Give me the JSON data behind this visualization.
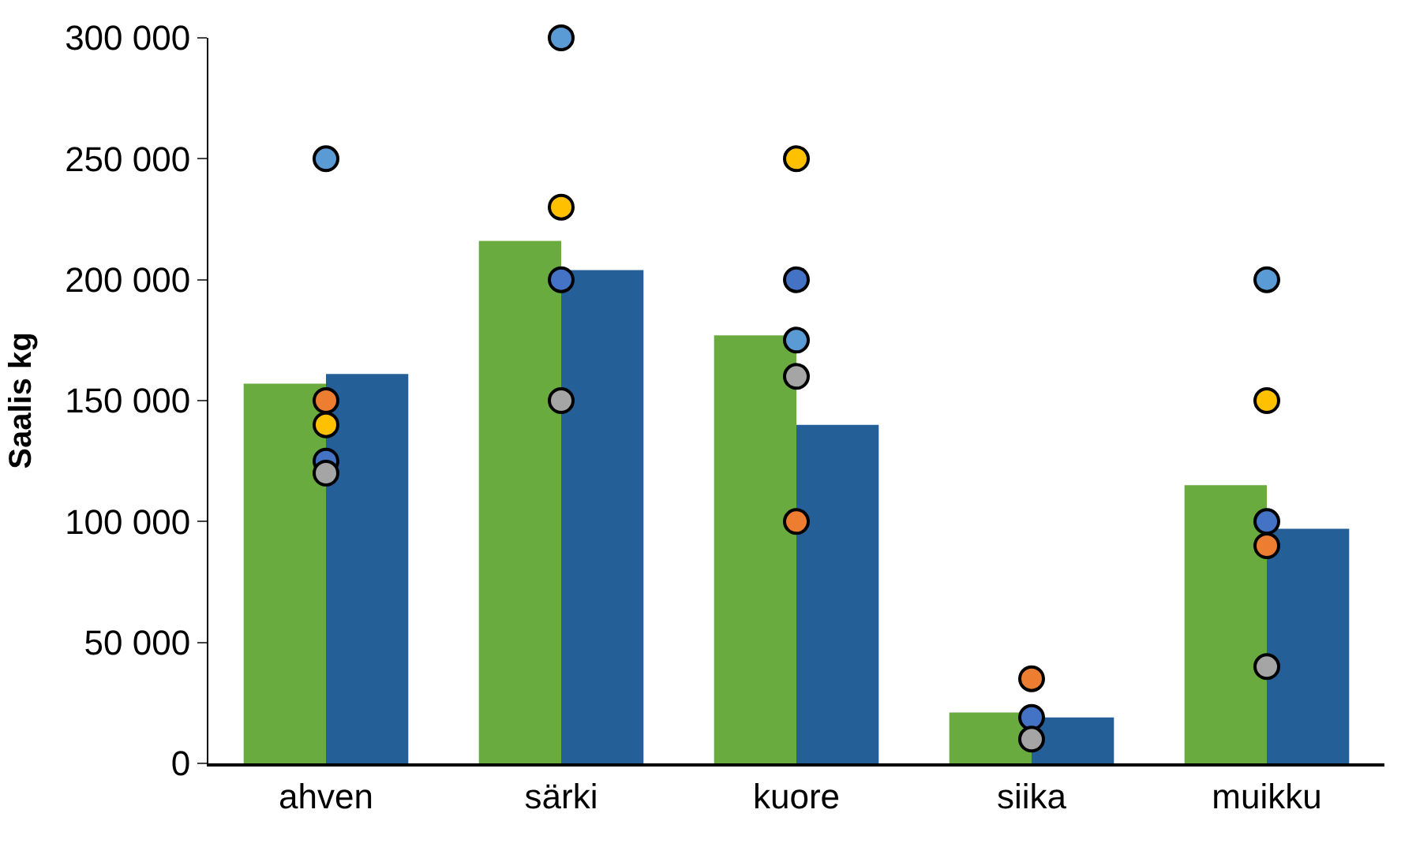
{
  "chart_data": {
    "type": "bar",
    "ylabel": "Saalis kg",
    "categories": [
      "ahven",
      "särki",
      "kuore",
      "siika",
      "muikku"
    ],
    "ylim": [
      0,
      300000
    ],
    "yticks": [
      {
        "value": 0,
        "label": "0"
      },
      {
        "value": 50000,
        "label": "50 000"
      },
      {
        "value": 100000,
        "label": "100 000"
      },
      {
        "value": 150000,
        "label": "150 000"
      },
      {
        "value": 200000,
        "label": "200 000"
      },
      {
        "value": 250000,
        "label": "250 000"
      },
      {
        "value": 300000,
        "label": "300 000"
      }
    ],
    "marker": "circle",
    "series": [
      {
        "color": "#6aab40",
        "values": [
          157000,
          216000,
          177000,
          21000,
          115000
        ]
      },
      {
        "color": "#255f97",
        "values": [
          161000,
          204000,
          140000,
          19000,
          97000
        ]
      },
      {
        "type": "scatter",
        "color": "#5b9bd5",
        "x": [
          "ahven",
          "särki",
          "kuore",
          "siika",
          "muikku"
        ],
        "values": [
          250000,
          300000,
          175000,
          null,
          200000
        ]
      },
      {
        "type": "scatter",
        "color": "#ffc000",
        "x": [
          "ahven",
          "särki",
          "kuore",
          "siika",
          "muikku"
        ],
        "values": [
          140000,
          230000,
          250000,
          null,
          150000
        ]
      },
      {
        "type": "scatter",
        "color": "#4472c4",
        "x": [
          "ahven",
          "särki",
          "kuore",
          "siika",
          "muikku"
        ],
        "values": [
          125000,
          200000,
          200000,
          19000,
          100000
        ]
      },
      {
        "type": "scatter",
        "color": "#ed7d31",
        "x": [
          "ahven",
          "särki",
          "kuore",
          "siika",
          "muikku"
        ],
        "values": [
          150000,
          null,
          100000,
          35000,
          90000
        ]
      },
      {
        "type": "scatter",
        "color": "#a5a5a5",
        "x": [
          "ahven",
          "särki",
          "kuore",
          "siika",
          "muikku"
        ],
        "values": [
          120000,
          150000,
          160000,
          10000,
          40000
        ]
      }
    ]
  }
}
